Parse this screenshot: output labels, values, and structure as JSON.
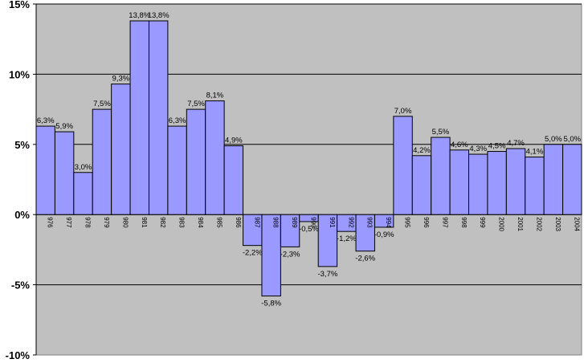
{
  "chart_data": {
    "type": "bar",
    "title": "",
    "xlabel": "",
    "ylabel": "",
    "ylim": [
      -10,
      15
    ],
    "y_ticks": [
      "-10%",
      "-5%",
      "0%",
      "5%",
      "10%",
      "15%"
    ],
    "y_tick_values": [
      -10,
      -5,
      0,
      5,
      10,
      15
    ],
    "grid": true,
    "colors": {
      "bar": "#9999ff",
      "plot_bg": "#c0c0c0",
      "grid": "#000000"
    },
    "categories": [
      "976",
      "977",
      "978",
      "979",
      "980",
      "981",
      "982",
      "983",
      "984",
      "985",
      "986",
      "987",
      "988",
      "989",
      "990",
      "991",
      "992",
      "993",
      "994",
      "995",
      "996",
      "997",
      "998",
      "999",
      "2000",
      "2001",
      "2002",
      "2003",
      "2004"
    ],
    "values": [
      6.3,
      5.9,
      3.0,
      7.5,
      9.3,
      13.8,
      13.8,
      6.3,
      7.5,
      8.1,
      4.9,
      -2.2,
      -5.8,
      -2.3,
      -0.5,
      -3.7,
      -1.2,
      -2.6,
      -0.9,
      7.0,
      4.2,
      5.5,
      4.6,
      4.3,
      4.5,
      4.7,
      4.1,
      5.0,
      5.0
    ],
    "labels": [
      "6,3%",
      "5,9%",
      "3,0%",
      "7,5%",
      "9,3%",
      "13,8%",
      "13,8%",
      "6,3%",
      "7,5%",
      "8,1%",
      "4,9%",
      "-2,2%",
      "-5,8%",
      "-2,3%",
      "-0,5%",
      "-3,7%",
      "-1,2%",
      "-2,6%",
      "-0,9%",
      "7,0%",
      "4,2%",
      "5,5%",
      "4,6%",
      "4,3%",
      "4,5%",
      "4,7%",
      "4,1%",
      "5,0%",
      "5,0%"
    ]
  }
}
